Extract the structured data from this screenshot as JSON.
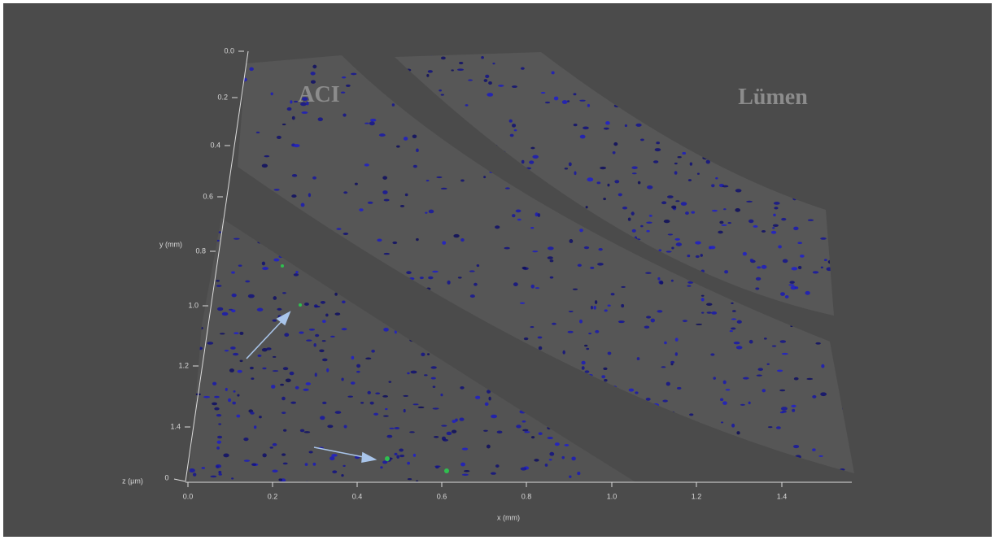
{
  "annotations": {
    "left": "ACI",
    "right": "Lümen"
  },
  "y_axis": {
    "label": "y (mm)",
    "ticks": [
      "0.0",
      "0.2",
      "0.4",
      "0.6",
      "0.8",
      "1.0",
      "1.2",
      "1.4"
    ]
  },
  "x_axis": {
    "label": "x (mm)",
    "ticks": [
      "0.0",
      "0.2",
      "0.4",
      "0.6",
      "0.8",
      "1.0",
      "1.2",
      "1.4"
    ]
  },
  "z_axis": {
    "label": "z (µm)",
    "ticks": [
      "0"
    ]
  }
}
